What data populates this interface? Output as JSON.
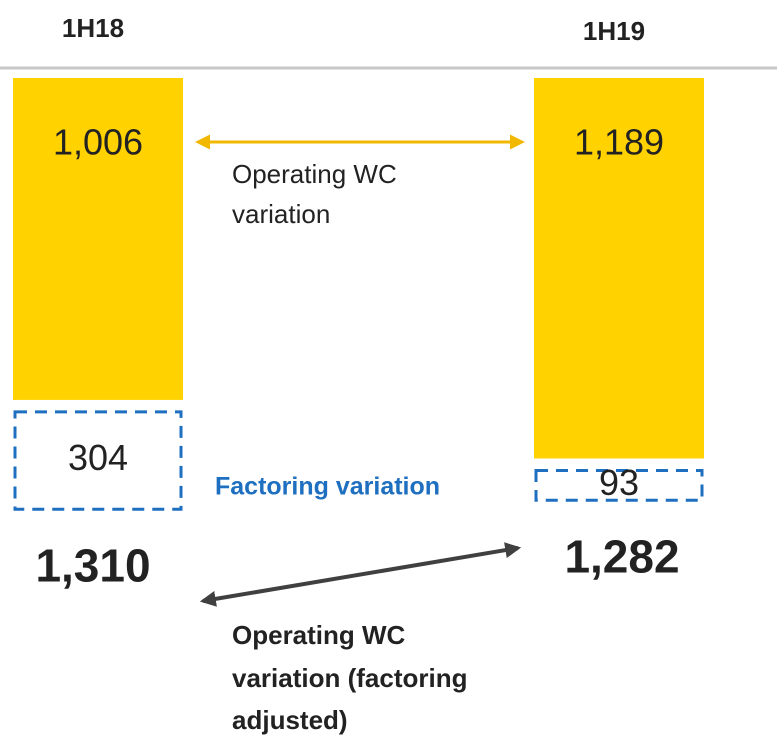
{
  "chart_data": {
    "type": "bar",
    "stacked": true,
    "categories": [
      "1H18",
      "1H19"
    ],
    "series": [
      {
        "color": "#FFD200",
        "style": "solid",
        "values": [
          1006,
          1189
        ],
        "value_labels": [
          "1,006",
          "1,189"
        ]
      },
      {
        "color": "#1F6FC0",
        "style": "dashed",
        "values": [
          304,
          93
        ]
      }
    ],
    "totals": [
      1310,
      1282
    ],
    "total_labels": [
      "1,310",
      "1,282"
    ],
    "annotations": {
      "operating": [
        "Operating WC",
        "variation"
      ],
      "factoring": "Factoring variation",
      "adjusted": [
        "Operating WC",
        "variation (factoring",
        "adjusted)"
      ]
    }
  }
}
